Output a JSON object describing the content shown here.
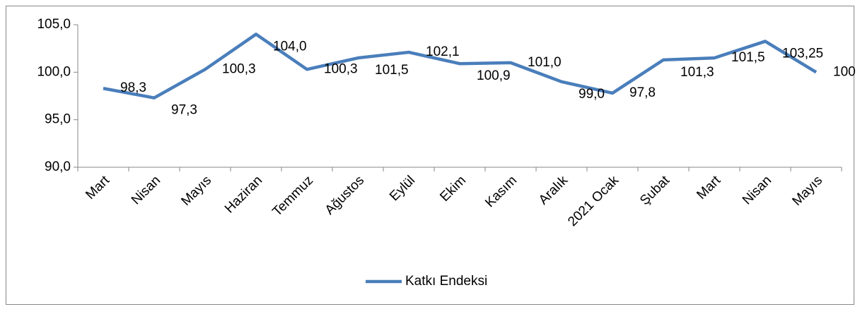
{
  "chart_data": {
    "type": "line",
    "categories": [
      "Mart",
      "Nisan",
      "Mayıs",
      "Haziran",
      "Temmuz",
      "Ağustos",
      "Eylül",
      "Ekim",
      "Kasım",
      "Aralık",
      "2021 Ocak",
      "Şubat",
      "Mart",
      "Nisan",
      "Mayıs"
    ],
    "series": [
      {
        "name": "Katkı Endeksi",
        "color": "#4a7ebb",
        "values": [
          98.3,
          97.3,
          100.3,
          104.0,
          100.3,
          101.5,
          102.1,
          100.9,
          101.0,
          99.0,
          97.8,
          101.3,
          101.5,
          103.25,
          100
        ],
        "value_labels": [
          "98,3",
          "97,3",
          "100,3",
          "104,0",
          "100,3",
          "101,5",
          "102,1",
          "100,9",
          "101,0",
          "99,0",
          "97,8",
          "101,3",
          "101,5",
          "103,25",
          "100"
        ]
      }
    ],
    "ylim": [
      90,
      105
    ],
    "yticks": [
      {
        "value": 90,
        "label": "90,0"
      },
      {
        "value": 95,
        "label": "95,0"
      },
      {
        "value": 100,
        "label": "100,0"
      },
      {
        "value": 105,
        "label": "105,0"
      }
    ],
    "legend": "bottom"
  }
}
